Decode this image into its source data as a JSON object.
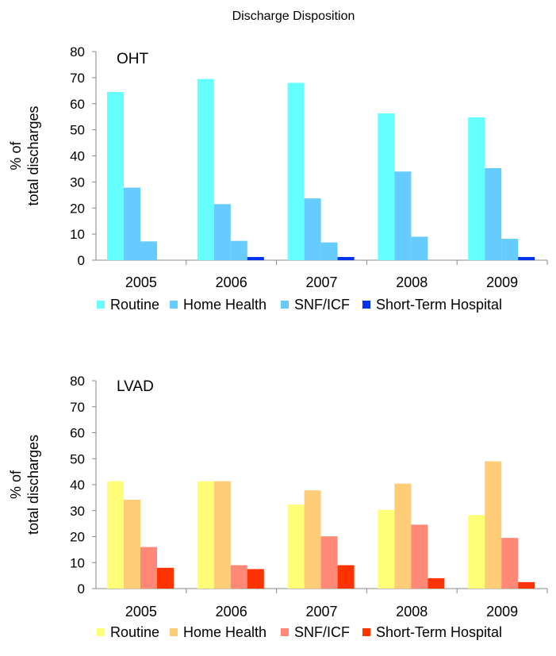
{
  "title": "Discharge Disposition",
  "chart_data": [
    {
      "type": "bar",
      "panel_title": "OHT",
      "ylabel_line1": "% of",
      "ylabel_line2": "total discharges",
      "ylim": [
        0,
        80
      ],
      "yticks": [
        0,
        10,
        20,
        30,
        40,
        50,
        60,
        70,
        80
      ],
      "categories": [
        "2005",
        "2006",
        "2007",
        "2008",
        "2009"
      ],
      "legend_position": "bottom",
      "series": [
        {
          "name": "Routine",
          "color": "#66ffff",
          "values": [
            64.5,
            69.5,
            68,
            56.3,
            54.8
          ]
        },
        {
          "name": "Home Health",
          "color": "#66ccff",
          "values": [
            27.8,
            21.5,
            23.7,
            34,
            35.3
          ]
        },
        {
          "name": "SNF/ICF",
          "color": "#66ccff",
          "values": [
            7.2,
            7.4,
            6.8,
            9,
            8.2
          ]
        },
        {
          "name": "Short-Term Hospital",
          "color": "#0033ee",
          "values": [
            0,
            1,
            1,
            0,
            1
          ]
        }
      ]
    },
    {
      "type": "bar",
      "panel_title": "LVAD",
      "ylabel_line1": "% of",
      "ylabel_line2": "total discharges",
      "ylim": [
        0,
        80
      ],
      "yticks": [
        0,
        10,
        20,
        30,
        40,
        50,
        60,
        70,
        80
      ],
      "categories": [
        "2005",
        "2006",
        "2007",
        "2008",
        "2009"
      ],
      "legend_position": "bottom",
      "series": [
        {
          "name": "Routine",
          "color": "#ffff77",
          "values": [
            41.3,
            41.3,
            32.3,
            30.3,
            28.3
          ]
        },
        {
          "name": "Home Health",
          "color": "#ffcc77",
          "values": [
            34.2,
            41.3,
            37.8,
            40.4,
            49
          ]
        },
        {
          "name": "SNF/ICF",
          "color": "#ff8877",
          "values": [
            16,
            9,
            20.1,
            24.6,
            19.5
          ]
        },
        {
          "name": "Short-Term Hospital",
          "color": "#ff3300",
          "values": [
            8,
            7.5,
            9,
            4,
            2.5
          ]
        }
      ]
    }
  ]
}
